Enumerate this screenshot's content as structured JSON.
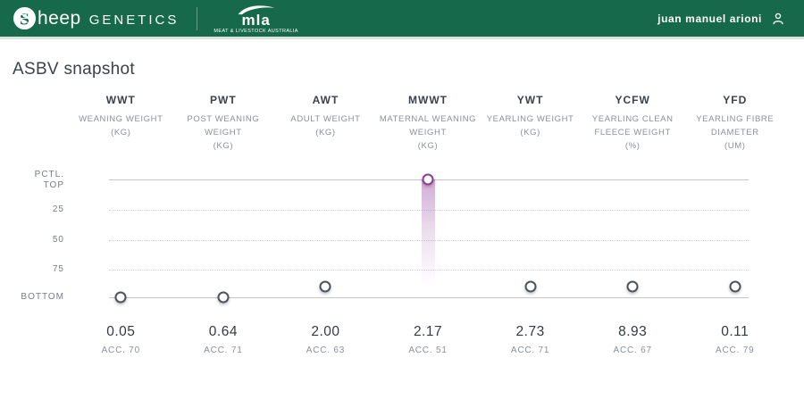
{
  "header": {
    "brand": {
      "sheep_prefix": "heep",
      "genetics": "GENETICS"
    },
    "mla": {
      "wordmark": "mla",
      "tagline": "MEAT & LIVESTOCK AUSTRALIA"
    },
    "user_name": "juan manuel arioni"
  },
  "page": {
    "title": "ASBV snapshot"
  },
  "chart_data": {
    "type": "scatter",
    "title": "ASBV snapshot",
    "y_axis": {
      "top_label_lines": [
        "PCTL.",
        "TOP"
      ],
      "mid_ticks": [
        "25",
        "50",
        "75"
      ],
      "bottom_label": "BOTTOM"
    },
    "columns": [
      {
        "code": "WWT",
        "name_lines": [
          "WEANING WEIGHT"
        ],
        "unit": "(KG)",
        "value": "0.05",
        "accuracy": "ACC. 70",
        "percentile_pos": 100,
        "highlighted": false
      },
      {
        "code": "PWT",
        "name_lines": [
          "POST WEANING WEIGHT"
        ],
        "unit": "(KG)",
        "value": "0.64",
        "accuracy": "ACC. 71",
        "percentile_pos": 100,
        "highlighted": false
      },
      {
        "code": "AWT",
        "name_lines": [
          "ADULT WEIGHT"
        ],
        "unit": "(KG)",
        "value": "2.00",
        "accuracy": "ACC. 63",
        "percentile_pos": 91,
        "highlighted": false
      },
      {
        "code": "MWWT",
        "name_lines": [
          "MATERNAL WEANING",
          "WEIGHT"
        ],
        "unit": "(KG)",
        "value": "2.17",
        "accuracy": "ACC. 51",
        "percentile_pos": 0,
        "highlighted": true
      },
      {
        "code": "YWT",
        "name_lines": [
          "YEARLING WEIGHT"
        ],
        "unit": "(KG)",
        "value": "2.73",
        "accuracy": "ACC. 71",
        "percentile_pos": 91,
        "highlighted": false
      },
      {
        "code": "YCFW",
        "name_lines": [
          "YEARLING CLEAN",
          "FLEECE WEIGHT"
        ],
        "unit": "(%)",
        "value": "8.93",
        "accuracy": "ACC. 67",
        "percentile_pos": 91,
        "highlighted": false
      },
      {
        "code": "YFD",
        "name_lines": [
          "YEARLING FIBRE",
          "DIAMETER"
        ],
        "unit": "(UM)",
        "value": "0.11",
        "accuracy": "ACC. 79",
        "percentile_pos": 91,
        "highlighted": false
      }
    ],
    "colors": {
      "header_green": "#17694c",
      "highlight_purple": "#8e3f90",
      "marker_gray": "#4d545b",
      "grid_line": "#c3c6c3",
      "text_dark": "#3b4248",
      "text_muted": "#8a9198"
    }
  }
}
